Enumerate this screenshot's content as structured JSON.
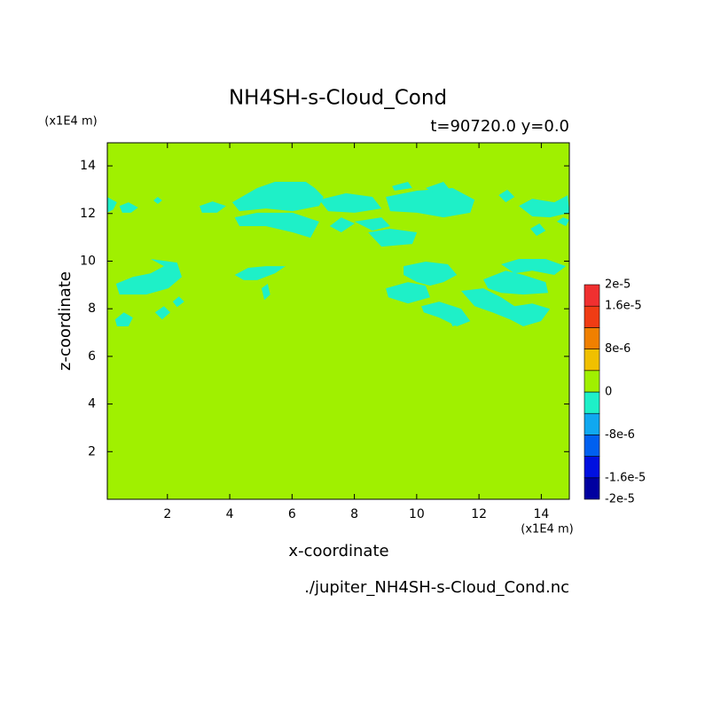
{
  "chart_data": {
    "type": "contour",
    "title": "NH4SH-s-Cloud_Cond",
    "subtitle": "t=90720.0 y=0.0",
    "x_label": "x-coordinate",
    "y_label": "z-coordinate",
    "x_unit": "(x1E4 m)",
    "y_unit": "(x1E4 m)",
    "footnote": "./jupiter_NH4SH-s-Cloud_Cond.nc",
    "xlim": [
      0.07,
      14.9
    ],
    "ylim": [
      0.0,
      14.97
    ],
    "xticks": [
      2,
      4,
      6,
      8,
      10,
      12,
      14
    ],
    "yticks": [
      2,
      4,
      6,
      8,
      10,
      12,
      14
    ],
    "field_color": "#a0f000",
    "region_color": "#1ef0c8",
    "regions": [
      {
        "x": [
          0.06,
          0.38,
          0.26,
          0.06
        ],
        "z": [
          12.7,
          12.47,
          12.17,
          12.03
        ]
      },
      {
        "x": [
          0.46,
          0.75,
          1.06,
          0.83,
          0.55
        ],
        "z": [
          12.32,
          12.47,
          12.25,
          12.03,
          12.03
        ]
      },
      {
        "x": [
          1.55,
          1.69,
          1.83,
          1.69
        ],
        "z": [
          12.55,
          12.7,
          12.55,
          12.4
        ]
      },
      {
        "x": [
          3.03,
          3.45,
          3.88,
          3.59,
          3.11
        ],
        "z": [
          12.32,
          12.51,
          12.32,
          12.03,
          12.03
        ]
      },
      {
        "x": [
          4.88,
          5.45,
          6.44,
          6.73,
          7.01,
          6.87,
          6.02,
          5.16,
          4.31,
          4.08
        ],
        "z": [
          13.07,
          13.33,
          13.33,
          13.07,
          12.7,
          12.32,
          12.1,
          12.21,
          12.1,
          12.47
        ]
      },
      {
        "x": [
          4.16,
          4.88,
          6.02,
          6.87,
          6.59,
          6.02,
          5.16,
          4.31
        ],
        "z": [
          11.84,
          12.03,
          12.03,
          11.66,
          10.98,
          11.21,
          11.47,
          11.47
        ]
      },
      {
        "x": [
          6.87,
          7.73,
          8.58,
          8.87,
          8.01,
          7.16
        ],
        "z": [
          12.58,
          12.85,
          12.7,
          12.21,
          12.03,
          12.1
        ]
      },
      {
        "x": [
          7.21,
          7.58,
          8.01,
          7.58
        ],
        "z": [
          11.47,
          11.84,
          11.58,
          11.21
        ]
      },
      {
        "x": [
          9.01,
          10.01,
          11.15,
          11.86,
          11.72,
          10.86,
          10.01,
          9.15
        ],
        "z": [
          12.7,
          12.96,
          13.07,
          12.58,
          12.03,
          11.84,
          12.03,
          12.1
        ]
      },
      {
        "x": [
          9.21,
          9.72,
          9.86,
          9.29
        ],
        "z": [
          13.15,
          13.33,
          13.07,
          12.96
        ]
      },
      {
        "x": [
          10.29,
          10.86,
          11.09,
          10.58
        ],
        "z": [
          13.07,
          13.33,
          12.96,
          12.85
        ]
      },
      {
        "x": [
          8.44,
          9.15,
          10.01,
          9.86,
          8.87
        ],
        "z": [
          11.21,
          11.36,
          11.21,
          10.72,
          10.61
        ]
      },
      {
        "x": [
          8.01,
          8.87,
          9.15,
          8.58
        ],
        "z": [
          11.66,
          11.84,
          11.47,
          11.28
        ]
      },
      {
        "x": [
          12.63,
          12.91,
          13.14,
          12.86
        ],
        "z": [
          12.77,
          13.0,
          12.7,
          12.47
        ]
      },
      {
        "x": [
          13.28,
          13.71,
          14.42,
          14.85,
          14.9,
          14.28,
          13.71
        ],
        "z": [
          12.32,
          12.62,
          12.47,
          12.77,
          12.03,
          11.84,
          11.88
        ]
      },
      {
        "x": [
          13.65,
          13.94,
          14.14,
          13.85
        ],
        "z": [
          11.36,
          11.58,
          11.28,
          11.06
        ]
      },
      {
        "x": [
          14.5,
          14.7,
          14.9,
          14.79
        ],
        "z": [
          11.66,
          11.84,
          11.73,
          11.47
        ]
      },
      {
        "x": [
          0.35,
          0.89,
          1.46,
          1.89,
          1.46,
          2.31,
          2.46,
          2.03,
          1.32,
          0.46
        ],
        "z": [
          9.05,
          9.34,
          9.49,
          9.79,
          10.09,
          9.94,
          9.34,
          8.86,
          8.6,
          8.6
        ]
      },
      {
        "x": [
          0.32,
          0.6,
          0.89,
          0.75,
          0.38
        ],
        "z": [
          7.55,
          7.85,
          7.63,
          7.26,
          7.26
        ]
      },
      {
        "x": [
          1.6,
          1.89,
          2.09,
          1.83
        ],
        "z": [
          7.85,
          8.11,
          7.85,
          7.55
        ]
      },
      {
        "x": [
          2.17,
          2.37,
          2.54,
          2.31
        ],
        "z": [
          8.3,
          8.52,
          8.3,
          8.07
        ]
      },
      {
        "x": [
          4.16,
          4.59,
          5.16,
          5.79,
          5.45,
          4.88,
          4.45
        ],
        "z": [
          9.42,
          9.72,
          9.79,
          9.79,
          9.49,
          9.2,
          9.2
        ]
      },
      {
        "x": [
          5.02,
          5.22,
          5.3,
          5.11
        ],
        "z": [
          8.86,
          9.05,
          8.6,
          8.37
        ]
      },
      {
        "x": [
          9.58,
          10.29,
          11.0,
          11.29,
          10.86,
          10.43,
          10.01,
          9.58
        ],
        "z": [
          9.79,
          9.98,
          9.87,
          9.42,
          9.12,
          8.97,
          9.12,
          9.42
        ]
      },
      {
        "x": [
          9.01,
          9.72,
          10.29,
          10.43,
          9.72,
          9.09
        ],
        "z": [
          8.86,
          9.12,
          8.97,
          8.48,
          8.22,
          8.48
        ]
      },
      {
        "x": [
          10.15,
          10.72,
          11.43,
          11.72,
          11.29,
          10.72,
          10.23
        ],
        "z": [
          8.11,
          8.3,
          8.0,
          7.48,
          7.26,
          7.63,
          7.85
        ]
      },
      {
        "x": [
          11.43,
          12.14,
          12.71,
          13.14,
          13.71,
          14.28,
          13.99,
          13.42,
          13.0,
          12.43,
          11.86
        ],
        "z": [
          8.75,
          8.86,
          8.48,
          8.11,
          8.22,
          8.0,
          7.48,
          7.26,
          7.55,
          7.85,
          8.11
        ]
      },
      {
        "x": [
          12.14,
          12.86,
          13.42,
          14.14,
          14.22,
          13.42,
          12.71,
          12.29
        ],
        "z": [
          9.23,
          9.6,
          9.42,
          9.12,
          8.67,
          8.6,
          8.67,
          8.86
        ]
      },
      {
        "x": [
          12.71,
          13.28,
          14.14,
          14.79,
          14.42,
          13.71,
          13.14
        ],
        "z": [
          9.87,
          10.09,
          10.09,
          9.79,
          9.42,
          9.6,
          9.49
        ]
      },
      {
        "x": [
          11.0,
          11.43,
          11.43,
          11.15
        ],
        "z": [
          7.74,
          7.85,
          7.37,
          7.26
        ]
      }
    ],
    "colorbar": {
      "levels": [
        -2e-05,
        -1.6e-05,
        -1.2e-05,
        -8e-06,
        -4e-06,
        0,
        4e-06,
        8e-06,
        1.2e-05,
        1.6e-05,
        2e-05
      ],
      "colors": [
        "#0000a0",
        "#0010e0",
        "#0060f0",
        "#10a8f0",
        "#1ef0c8",
        "#a0f000",
        "#f0c000",
        "#f08000",
        "#f03c14",
        "#f03030"
      ],
      "ticks": [
        {
          "value": 2e-05,
          "label": "2e-5"
        },
        {
          "value": 1.6e-05,
          "label": "1.6e-5"
        },
        {
          "value": 8e-06,
          "label": "8e-6"
        },
        0,
        {
          "value": -8e-06,
          "label": "-8e-6"
        },
        {
          "value": -1.6e-05,
          "label": "-1.6e-5"
        },
        {
          "value": -2e-05,
          "label": "-2e-5"
        }
      ]
    }
  }
}
